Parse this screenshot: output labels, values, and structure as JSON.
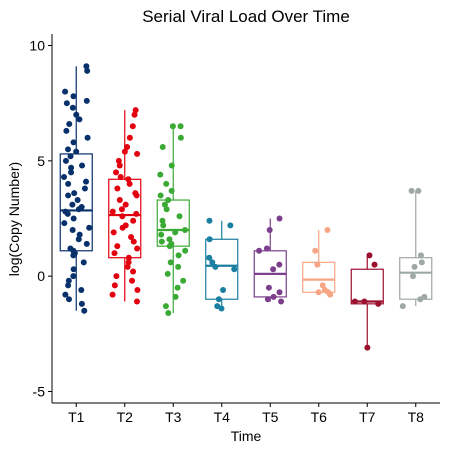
{
  "chart_data": {
    "type": "box",
    "title": "Serial Viral Load Over Time",
    "xlabel": "Time",
    "ylabel": "log(Copy Number)",
    "ylim": [
      -5.5,
      10.5
    ],
    "y_ticks": [
      -5,
      0,
      5,
      10
    ],
    "categories": [
      "T1",
      "T2",
      "T3",
      "T4",
      "T5",
      "T6",
      "T7",
      "T8"
    ],
    "grid": false,
    "legend": "none",
    "series": [
      {
        "category": "T1",
        "color": "#08306b",
        "box": {
          "whisker_low": -1.5,
          "q1": 1.1,
          "median": 2.85,
          "q3": 5.3,
          "whisker_high": 9.1
        },
        "points": [
          9.1,
          8.9,
          8.0,
          7.8,
          7.6,
          7.5,
          7.3,
          7.0,
          6.8,
          6.6,
          6.3,
          6.0,
          5.8,
          5.5,
          5.4,
          5.2,
          5.0,
          4.8,
          4.7,
          4.5,
          4.3,
          4.1,
          4.0,
          3.8,
          3.6,
          3.5,
          3.3,
          3.1,
          3.0,
          2.9,
          2.8,
          2.7,
          2.5,
          2.3,
          2.1,
          2.0,
          1.8,
          1.6,
          1.4,
          1.2,
          1.1,
          1.0,
          0.9,
          0.6,
          0.3,
          0.0,
          -0.2,
          -0.4,
          -0.6,
          -0.8,
          -1.0,
          -1.2,
          -1.5
        ]
      },
      {
        "category": "T2",
        "color": "#e3000f",
        "box": {
          "whisker_low": -1.1,
          "q1": 0.8,
          "median": 2.65,
          "q3": 4.2,
          "whisker_high": 7.2
        },
        "points": [
          7.2,
          7.0,
          6.5,
          6.0,
          5.6,
          5.4,
          5.3,
          5.0,
          4.8,
          4.5,
          4.3,
          4.2,
          4.0,
          3.8,
          3.6,
          3.5,
          3.3,
          3.1,
          2.9,
          2.8,
          2.7,
          2.6,
          2.4,
          2.2,
          2.1,
          1.9,
          1.7,
          1.5,
          1.3,
          1.2,
          1.0,
          0.8,
          0.6,
          0.4,
          0.2,
          0.0,
          -0.2,
          -0.4,
          -0.6,
          -0.8,
          -1.1
        ]
      },
      {
        "category": "T3",
        "color": "#3aaa35",
        "box": {
          "whisker_low": -1.6,
          "q1": 1.3,
          "median": 2.0,
          "q3": 3.3,
          "whisker_high": 6.5
        },
        "points": [
          6.5,
          6.5,
          6.0,
          5.6,
          4.8,
          4.4,
          4.0,
          3.7,
          3.5,
          3.3,
          3.1,
          2.9,
          2.6,
          2.4,
          2.2,
          2.0,
          1.9,
          1.8,
          1.6,
          1.5,
          1.4,
          1.3,
          1.1,
          0.9,
          0.6,
          0.4,
          0.1,
          -0.2,
          -0.5,
          -0.9,
          -1.3,
          -1.6
        ]
      },
      {
        "category": "T4",
        "color": "#1a7fa0",
        "box": {
          "whisker_low": -1.4,
          "q1": -1.0,
          "median": 0.45,
          "q3": 1.6,
          "whisker_high": 2.4
        },
        "points": [
          2.4,
          2.2,
          1.6,
          0.8,
          0.6,
          0.4,
          0.3,
          -0.6,
          -1.0,
          -1.3,
          -1.4
        ]
      },
      {
        "category": "T5",
        "color": "#7b3f8c",
        "box": {
          "whisker_low": -1.1,
          "q1": -0.9,
          "median": 0.1,
          "q3": 1.1,
          "whisker_high": 2.5
        },
        "points": [
          2.5,
          2.0,
          1.2,
          1.1,
          0.5,
          0.3,
          -0.5,
          -0.7,
          -0.9,
          -1.0,
          -1.1
        ]
      },
      {
        "category": "T6",
        "color": "#f7a584",
        "box": {
          "whisker_low": -0.8,
          "q1": -0.7,
          "median": -0.15,
          "q3": 0.6,
          "whisker_high": 2.0
        },
        "points": [
          2.0,
          1.1,
          0.5,
          -0.4,
          -0.6,
          -0.7,
          -0.7,
          -0.8
        ]
      },
      {
        "category": "T7",
        "color": "#9b0f2e",
        "box": {
          "whisker_low": -3.1,
          "q1": -1.2,
          "median": -1.1,
          "q3": 0.3,
          "whisker_high": 0.9
        },
        "points": [
          0.9,
          0.5,
          -1.1,
          -1.1,
          -1.2,
          -3.1
        ]
      },
      {
        "category": "T8",
        "color": "#9ea8a4",
        "box": {
          "whisker_low": -1.3,
          "q1": -1.0,
          "median": 0.15,
          "q3": 0.8,
          "whisker_high": 3.7
        },
        "points": [
          3.7,
          3.7,
          0.9,
          0.6,
          0.4,
          0.0,
          -0.9,
          -1.0,
          -1.3
        ]
      }
    ]
  }
}
